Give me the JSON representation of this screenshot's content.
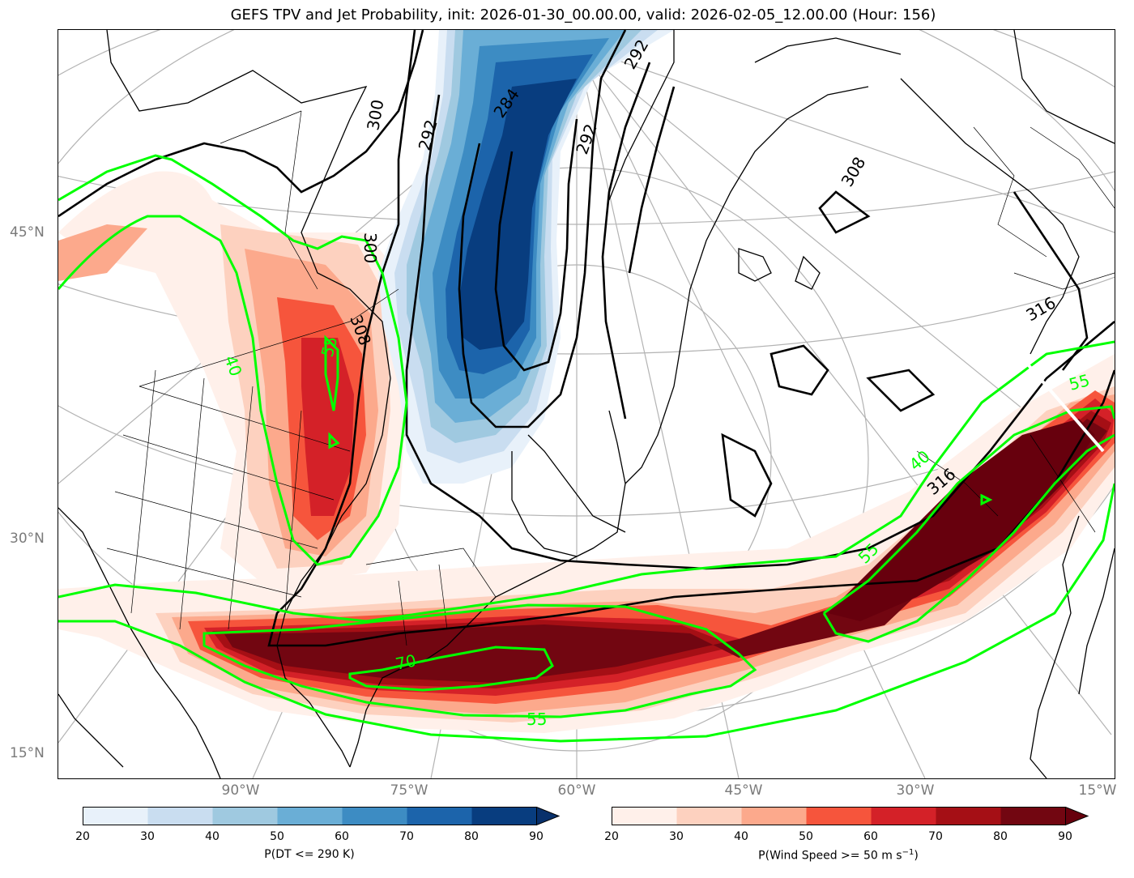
{
  "title": "GEFS TPV and Jet Probability, init: 2026-01-30_00.00.00, valid: 2026-02-05_12.00.00 (Hour: 156)",
  "lat_labels": [
    "45°N",
    "30°N",
    "15°N"
  ],
  "lon_labels": [
    "90°W",
    "75°W",
    "60°W",
    "45°W",
    "30°W",
    "15°W"
  ],
  "colorbars": [
    {
      "name": "tpv",
      "label": "P(DT <= 290 K)",
      "ticks": [
        "20",
        "30",
        "40",
        "50",
        "60",
        "70",
        "80",
        "90"
      ],
      "colors": [
        "#e8f1fa",
        "#c9ddf0",
        "#9fc9e0",
        "#6aaed6",
        "#3d8cc3",
        "#1c64ab",
        "#083d7f"
      ],
      "extend_color": "#08306b"
    },
    {
      "name": "jet",
      "label_main": "P(Wind Speed >= 50 m s",
      "label_sup": "−1",
      "label_end": ")",
      "ticks": [
        "20",
        "30",
        "40",
        "50",
        "60",
        "70",
        "80",
        "90"
      ],
      "colors": [
        "#fff0ea",
        "#fdd1bf",
        "#fca98c",
        "#f6553c",
        "#d42128",
        "#a50f15",
        "#720611"
      ],
      "extend_color": "#67000d"
    }
  ],
  "dt_contour_labels": [
    "300",
    "292",
    "284",
    "300",
    "292",
    "292",
    "308",
    "308",
    "316",
    "316"
  ],
  "jet_contour_labels": [
    "40",
    "55",
    "40",
    "55",
    "55",
    "70",
    "55"
  ],
  "colors": {
    "dt_contour": "#000000",
    "jet_contour": "#00ff00",
    "coast": "#000000",
    "grid": "#aaaaaa"
  }
}
